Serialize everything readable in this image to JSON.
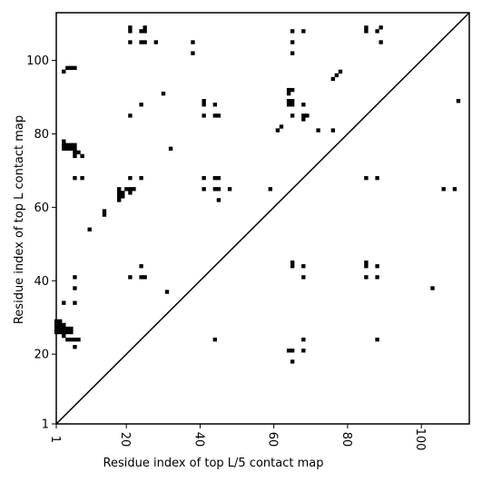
{
  "chart_data": {
    "type": "heatmap",
    "title": "",
    "xlabel": "Residue index of top L/5 contact map",
    "ylabel": "Residue index of top L contact map",
    "xlim": [
      1,
      113
    ],
    "ylim": [
      1,
      113
    ],
    "x_ticks": [
      1,
      20,
      40,
      60,
      80,
      100
    ],
    "y_ticks": [
      1,
      20,
      40,
      60,
      80,
      100
    ],
    "diagonal": true,
    "grid": false,
    "cell_color": "#000000",
    "background_color": "#ffffff",
    "cells": [
      [
        21,
        109
      ],
      [
        21,
        108
      ],
      [
        25,
        109
      ],
      [
        24,
        108
      ],
      [
        25,
        108
      ],
      [
        21,
        105
      ],
      [
        24,
        105
      ],
      [
        25,
        105
      ],
      [
        28,
        105
      ],
      [
        38,
        105
      ],
      [
        38,
        102
      ],
      [
        65,
        108
      ],
      [
        68,
        108
      ],
      [
        85,
        109
      ],
      [
        85,
        108
      ],
      [
        88,
        108
      ],
      [
        89,
        109
      ],
      [
        65,
        105
      ],
      [
        89,
        105
      ],
      [
        65,
        102
      ],
      [
        3,
        97
      ],
      [
        4,
        98
      ],
      [
        5,
        98
      ],
      [
        6,
        98
      ],
      [
        30,
        91
      ],
      [
        24,
        88
      ],
      [
        41,
        89
      ],
      [
        41,
        88
      ],
      [
        44,
        88
      ],
      [
        64,
        92
      ],
      [
        65,
        92
      ],
      [
        64,
        91
      ],
      [
        64,
        89
      ],
      [
        65,
        89
      ],
      [
        64,
        88
      ],
      [
        65,
        88
      ],
      [
        68,
        88
      ],
      [
        76,
        95
      ],
      [
        77,
        96
      ],
      [
        78,
        97
      ],
      [
        110,
        89
      ],
      [
        21,
        85
      ],
      [
        41,
        85
      ],
      [
        44,
        85
      ],
      [
        45,
        85
      ],
      [
        65,
        85
      ],
      [
        68,
        85
      ],
      [
        69,
        85
      ],
      [
        68,
        84
      ],
      [
        62,
        82
      ],
      [
        61,
        81
      ],
      [
        72,
        81
      ],
      [
        76,
        81
      ],
      [
        3,
        78
      ],
      [
        3,
        77
      ],
      [
        4,
        77
      ],
      [
        5,
        77
      ],
      [
        6,
        77
      ],
      [
        3,
        76
      ],
      [
        4,
        76
      ],
      [
        5,
        76
      ],
      [
        6,
        76
      ],
      [
        6,
        75
      ],
      [
        7,
        75
      ],
      [
        6,
        74
      ],
      [
        8,
        74
      ],
      [
        32,
        76
      ],
      [
        6,
        68
      ],
      [
        8,
        68
      ],
      [
        21,
        68
      ],
      [
        24,
        68
      ],
      [
        41,
        68
      ],
      [
        44,
        68
      ],
      [
        45,
        68
      ],
      [
        85,
        68
      ],
      [
        88,
        68
      ],
      [
        18,
        65
      ],
      [
        20,
        65
      ],
      [
        21,
        65
      ],
      [
        22,
        65
      ],
      [
        18,
        64
      ],
      [
        19,
        64
      ],
      [
        21,
        64
      ],
      [
        18,
        63
      ],
      [
        19,
        63
      ],
      [
        18,
        62
      ],
      [
        41,
        65
      ],
      [
        44,
        65
      ],
      [
        45,
        65
      ],
      [
        48,
        65
      ],
      [
        45,
        62
      ],
      [
        59,
        65
      ],
      [
        106,
        65
      ],
      [
        109,
        65
      ],
      [
        14,
        59
      ],
      [
        14,
        58
      ],
      [
        10,
        54
      ],
      [
        6,
        41
      ],
      [
        21,
        41
      ],
      [
        24,
        41
      ],
      [
        25,
        41
      ],
      [
        6,
        38
      ],
      [
        3,
        34
      ],
      [
        6,
        34
      ],
      [
        24,
        44
      ],
      [
        31,
        37
      ],
      [
        65,
        45
      ],
      [
        65,
        44
      ],
      [
        68,
        44
      ],
      [
        85,
        45
      ],
      [
        85,
        44
      ],
      [
        88,
        44
      ],
      [
        68,
        41
      ],
      [
        85,
        41
      ],
      [
        88,
        41
      ],
      [
        103,
        38
      ],
      [
        1,
        29
      ],
      [
        2,
        29
      ],
      [
        1,
        28
      ],
      [
        2,
        28
      ],
      [
        3,
        28
      ],
      [
        1,
        27
      ],
      [
        2,
        27
      ],
      [
        3,
        27
      ],
      [
        4,
        27
      ],
      [
        5,
        27
      ],
      [
        1,
        26
      ],
      [
        2,
        26
      ],
      [
        3,
        26
      ],
      [
        4,
        26
      ],
      [
        5,
        26
      ],
      [
        3,
        25
      ],
      [
        4,
        24
      ],
      [
        5,
        24
      ],
      [
        6,
        24
      ],
      [
        7,
        24
      ],
      [
        6,
        22
      ],
      [
        44,
        24
      ],
      [
        68,
        24
      ],
      [
        88,
        24
      ],
      [
        64,
        21
      ],
      [
        65,
        21
      ],
      [
        68,
        21
      ],
      [
        65,
        18
      ]
    ]
  }
}
